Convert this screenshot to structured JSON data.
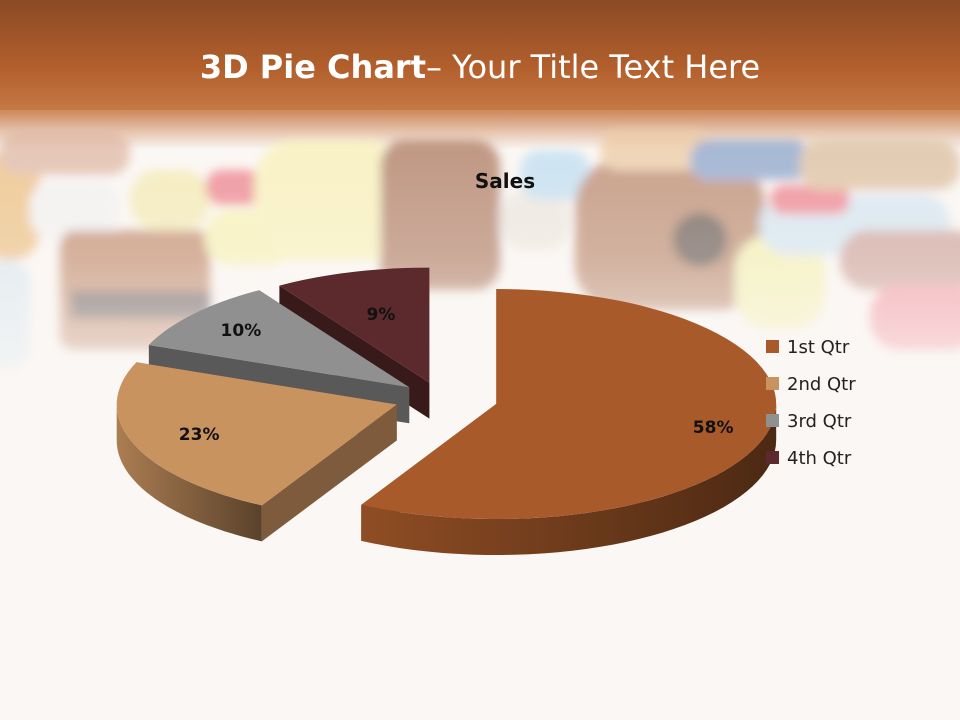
{
  "slide": {
    "title_bold": "3D Pie Chart",
    "title_rest": "– Your Title Text Here"
  },
  "colors": {
    "header": "#b25f2c",
    "q1": "#a85a2a",
    "q2": "#c99360",
    "q3": "#909090",
    "q4": "#5c2a2c"
  },
  "chart_data": {
    "type": "pie",
    "title": "Sales",
    "style": "3d-exploded",
    "categories": [
      "1st Qtr",
      "2nd Qtr",
      "3rd Qtr",
      "4th Qtr"
    ],
    "values": [
      58,
      23,
      10,
      9
    ],
    "data_labels": [
      "58%",
      "23%",
      "10%",
      "9%"
    ],
    "legend_position": "right"
  }
}
